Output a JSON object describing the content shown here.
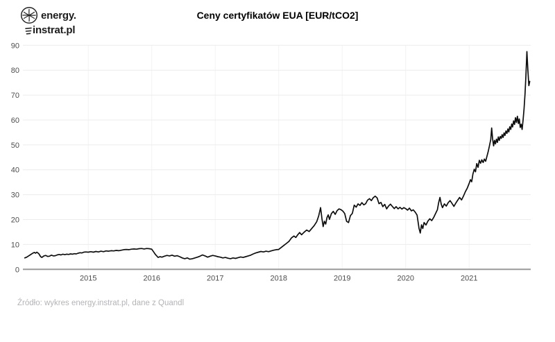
{
  "logo": {
    "icon": "lightbulb-sketch-icon",
    "line1": "energy.",
    "line2": "instrat.pl"
  },
  "source_note": "Źródło: wykres energy.instrat.pl, dane z Quandl",
  "chart_data": {
    "type": "line",
    "title": "Ceny certyfikatów EUA [EUR/tCO2]",
    "xlabel": "",
    "ylabel": "",
    "x_ticks": [
      2015,
      2016,
      2017,
      2018,
      2019,
      2020,
      2021
    ],
    "y_ticks": [
      0,
      10,
      20,
      30,
      40,
      50,
      60,
      70,
      80,
      90
    ],
    "x_range": [
      2013.97,
      2021.97
    ],
    "ylim": [
      0,
      90
    ],
    "grid": true,
    "legend": "none",
    "colors": {
      "line": "#0d0d0d",
      "grid_h": "#ececec",
      "grid_v": "#f2f2f2",
      "axis": "#9a9a9a",
      "tick_text": "#4d4d4d"
    },
    "series": [
      {
        "name": "Cena EUA [EUR/tCO2]",
        "x": [
          2014.0,
          2014.03,
          2014.06,
          2014.09,
          2014.12,
          2014.15,
          2014.17,
          2014.19,
          2014.22,
          2014.25,
          2014.27,
          2014.3,
          2014.33,
          2014.36,
          2014.39,
          2014.42,
          2014.45,
          2014.48,
          2014.51,
          2014.54,
          2014.57,
          2014.6,
          2014.63,
          2014.66,
          2014.69,
          2014.72,
          2014.75,
          2014.78,
          2014.81,
          2014.84,
          2014.87,
          2014.9,
          2014.93,
          2014.96,
          2015.0,
          2015.04,
          2015.08,
          2015.12,
          2015.16,
          2015.2,
          2015.24,
          2015.28,
          2015.32,
          2015.36,
          2015.4,
          2015.44,
          2015.48,
          2015.52,
          2015.56,
          2015.6,
          2015.64,
          2015.68,
          2015.72,
          2015.76,
          2015.8,
          2015.84,
          2015.88,
          2015.92,
          2015.96,
          2016.0,
          2016.03,
          2016.06,
          2016.1,
          2016.13,
          2016.16,
          2016.2,
          2016.24,
          2016.28,
          2016.32,
          2016.36,
          2016.4,
          2016.44,
          2016.48,
          2016.52,
          2016.56,
          2016.6,
          2016.64,
          2016.68,
          2016.72,
          2016.76,
          2016.8,
          2016.84,
          2016.88,
          2016.92,
          2016.96,
          2017.0,
          2017.04,
          2017.08,
          2017.12,
          2017.16,
          2017.2,
          2017.24,
          2017.28,
          2017.32,
          2017.36,
          2017.4,
          2017.44,
          2017.48,
          2017.52,
          2017.56,
          2017.6,
          2017.64,
          2017.68,
          2017.72,
          2017.76,
          2017.8,
          2017.84,
          2017.88,
          2017.92,
          2017.96,
          2018.0,
          2018.04,
          2018.08,
          2018.12,
          2018.16,
          2018.2,
          2018.24,
          2018.27,
          2018.3,
          2018.33,
          2018.36,
          2018.4,
          2018.44,
          2018.48,
          2018.52,
          2018.56,
          2018.6,
          2018.63,
          2018.66,
          2018.68,
          2018.7,
          2018.72,
          2018.74,
          2018.76,
          2018.78,
          2018.8,
          2018.83,
          2018.86,
          2018.89,
          2018.92,
          2018.95,
          2018.98,
          2019.01,
          2019.04,
          2019.07,
          2019.1,
          2019.13,
          2019.16,
          2019.19,
          2019.22,
          2019.25,
          2019.28,
          2019.31,
          2019.34,
          2019.37,
          2019.4,
          2019.43,
          2019.46,
          2019.49,
          2019.52,
          2019.55,
          2019.58,
          2019.61,
          2019.64,
          2019.67,
          2019.7,
          2019.73,
          2019.76,
          2019.79,
          2019.82,
          2019.85,
          2019.88,
          2019.91,
          2019.94,
          2019.97,
          2020.0,
          2020.03,
          2020.06,
          2020.09,
          2020.12,
          2020.15,
          2020.18,
          2020.21,
          2020.23,
          2020.25,
          2020.27,
          2020.29,
          2020.32,
          2020.35,
          2020.38,
          2020.41,
          2020.44,
          2020.47,
          2020.5,
          2020.52,
          2020.54,
          2020.56,
          2020.58,
          2020.61,
          2020.64,
          2020.67,
          2020.7,
          2020.73,
          2020.76,
          2020.79,
          2020.82,
          2020.85,
          2020.88,
          2020.91,
          2020.94,
          2020.97,
          2021.0,
          2021.02,
          2021.04,
          2021.06,
          2021.08,
          2021.1,
          2021.12,
          2021.14,
          2021.16,
          2021.18,
          2021.2,
          2021.22,
          2021.24,
          2021.26,
          2021.28,
          2021.3,
          2021.32,
          2021.34,
          2021.355,
          2021.37,
          2021.385,
          2021.4,
          2021.415,
          2021.43,
          2021.445,
          2021.46,
          2021.475,
          2021.49,
          2021.505,
          2021.52,
          2021.535,
          2021.55,
          2021.565,
          2021.58,
          2021.595,
          2021.61,
          2021.625,
          2021.64,
          2021.655,
          2021.67,
          2021.685,
          2021.7,
          2021.715,
          2021.73,
          2021.745,
          2021.76,
          2021.775,
          2021.79,
          2021.805,
          2021.82,
          2021.835,
          2021.85,
          2021.865,
          2021.88,
          2021.895,
          2021.91,
          2021.925,
          2021.94,
          2021.955
        ],
        "y": [
          4.6,
          4.9,
          5.4,
          5.9,
          6.4,
          6.8,
          6.5,
          6.9,
          6.3,
          5.1,
          4.8,
          5.4,
          5.6,
          5.2,
          5.3,
          5.7,
          5.4,
          5.5,
          5.8,
          6.0,
          5.8,
          6.1,
          5.9,
          6.1,
          6.0,
          6.2,
          6.1,
          6.3,
          6.2,
          6.5,
          6.7,
          6.6,
          6.9,
          7.0,
          6.9,
          7.1,
          6.9,
          7.2,
          7.0,
          7.3,
          7.1,
          7.4,
          7.3,
          7.5,
          7.4,
          7.6,
          7.5,
          7.7,
          7.9,
          8.0,
          7.9,
          8.1,
          8.2,
          8.1,
          8.3,
          8.4,
          8.2,
          8.4,
          8.3,
          8.1,
          7.0,
          5.9,
          4.8,
          5.1,
          4.9,
          5.3,
          5.6,
          5.4,
          5.7,
          5.3,
          5.5,
          5.1,
          4.6,
          4.3,
          4.6,
          4.1,
          4.3,
          4.6,
          4.9,
          5.3,
          5.8,
          5.4,
          4.9,
          5.3,
          5.6,
          5.4,
          5.1,
          4.9,
          4.6,
          4.8,
          4.5,
          4.3,
          4.6,
          4.4,
          4.7,
          5.0,
          4.8,
          5.1,
          5.4,
          5.7,
          6.2,
          6.6,
          6.9,
          7.2,
          7.0,
          7.3,
          7.1,
          7.4,
          7.7,
          7.9,
          8.0,
          8.8,
          9.6,
          10.4,
          11.2,
          12.6,
          13.4,
          12.8,
          13.9,
          14.8,
          13.9,
          14.9,
          15.8,
          15.2,
          16.4,
          17.6,
          19.2,
          21.5,
          24.8,
          20.5,
          17.2,
          19.3,
          18.2,
          20.8,
          21.9,
          20.1,
          22.4,
          23.3,
          22.1,
          23.6,
          24.3,
          24.0,
          23.4,
          22.4,
          19.3,
          18.8,
          21.6,
          22.5,
          25.8,
          25.0,
          26.3,
          25.7,
          26.8,
          25.9,
          26.4,
          27.8,
          28.4,
          27.6,
          28.8,
          29.4,
          28.7,
          26.4,
          26.9,
          25.2,
          26.1,
          24.3,
          25.4,
          26.2,
          25.3,
          24.4,
          25.2,
          24.3,
          24.9,
          24.2,
          24.8,
          24.4,
          23.8,
          24.6,
          23.5,
          23.9,
          23.0,
          21.8,
          16.5,
          14.6,
          17.9,
          16.4,
          18.8,
          17.8,
          19.4,
          20.3,
          19.6,
          20.8,
          22.4,
          24.0,
          26.8,
          28.9,
          26.2,
          24.8,
          26.3,
          25.4,
          26.8,
          27.6,
          26.5,
          25.3,
          26.6,
          27.8,
          28.9,
          27.9,
          29.4,
          31.2,
          32.6,
          34.5,
          36.0,
          35.2,
          38.3,
          40.2,
          39.2,
          42.5,
          41.0,
          43.8,
          42.6,
          44.0,
          42.9,
          44.3,
          43.4,
          45.4,
          47.3,
          49.6,
          52.2,
          56.8,
          52.3,
          49.6,
          51.8,
          50.4,
          52.3,
          51.0,
          53.2,
          51.8,
          53.4,
          52.6,
          54.1,
          53.0,
          54.8,
          53.8,
          55.6,
          54.6,
          56.4,
          55.2,
          57.3,
          56.2,
          58.4,
          57.2,
          59.6,
          58.2,
          60.9,
          59.0,
          61.5,
          58.6,
          60.4,
          57.0,
          58.3,
          56.2,
          60.0,
          64.5,
          70.5,
          78.0,
          87.5,
          80.0,
          73.8,
          75.5
        ]
      }
    ]
  }
}
